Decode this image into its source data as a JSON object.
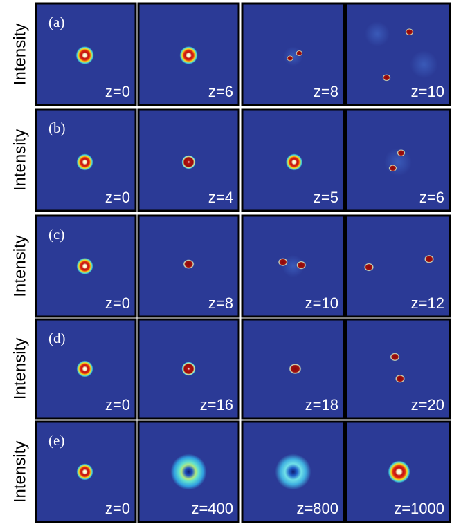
{
  "figure": {
    "ylabel": "Intensity",
    "rows": [
      {
        "label": "(a)",
        "panels": [
          "z=0",
          "z=6",
          "z=8",
          "z=10"
        ]
      },
      {
        "label": "(b)",
        "panels": [
          "z=0",
          "z=4",
          "z=5",
          "z=6"
        ]
      },
      {
        "label": "(c)",
        "panels": [
          "z=0",
          "z=8",
          "z=10",
          "z=12"
        ]
      },
      {
        "label": "(d)",
        "panels": [
          "z=0",
          "z=16",
          "z=18",
          "z=20"
        ]
      },
      {
        "label": "(e)",
        "panels": [
          "z=0",
          "z=400",
          "z=800",
          "z=1000"
        ]
      }
    ]
  }
}
